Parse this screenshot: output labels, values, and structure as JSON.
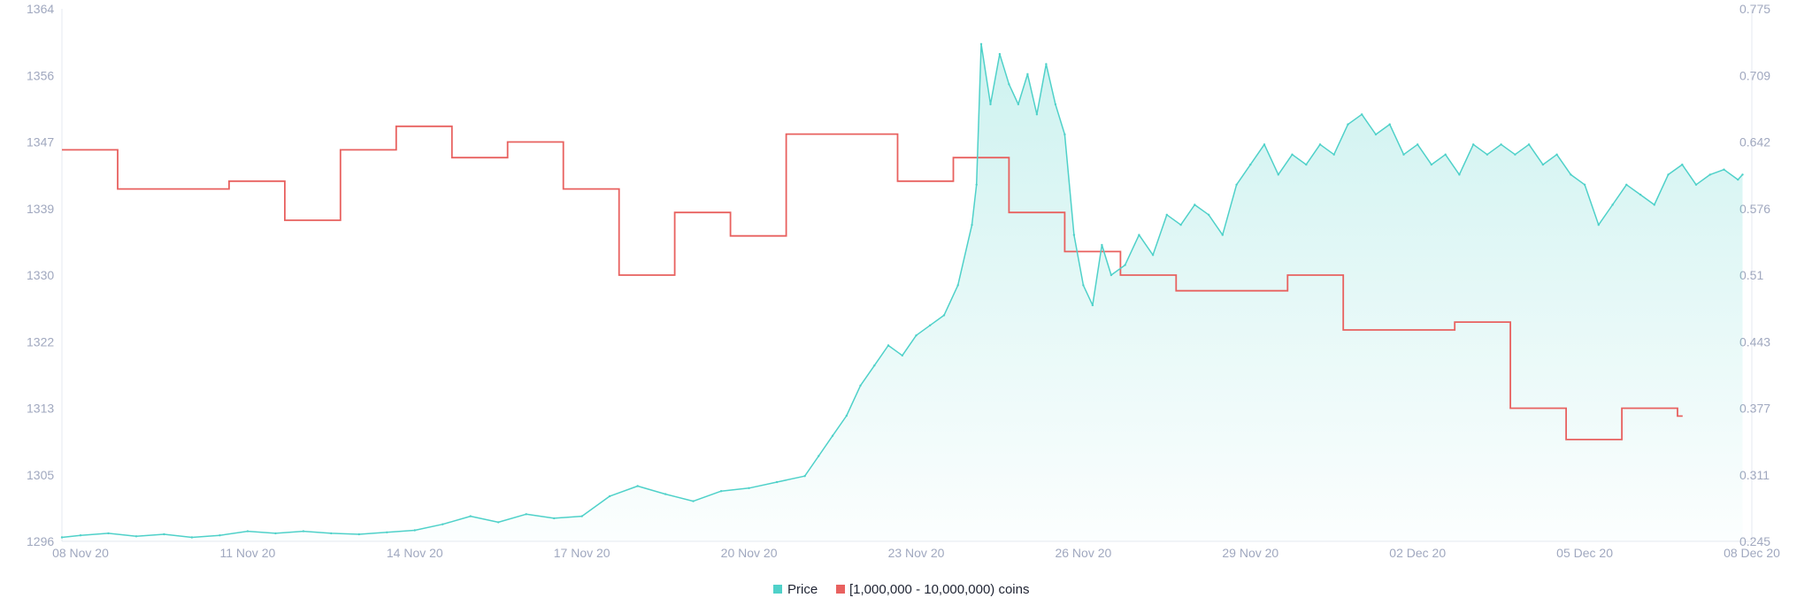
{
  "chart_data": {
    "type": "line",
    "x_range": [
      "2020-11-07T16:00",
      "2020-12-08T00:00"
    ],
    "x_ticks": [
      {
        "date": "2020-11-08",
        "label": "08 Nov 20"
      },
      {
        "date": "2020-11-11",
        "label": "11 Nov 20"
      },
      {
        "date": "2020-11-14",
        "label": "14 Nov 20"
      },
      {
        "date": "2020-11-17",
        "label": "17 Nov 20"
      },
      {
        "date": "2020-11-20",
        "label": "20 Nov 20"
      },
      {
        "date": "2020-11-23",
        "label": "23 Nov 20"
      },
      {
        "date": "2020-11-26",
        "label": "26 Nov 20"
      },
      {
        "date": "2020-11-29",
        "label": "29 Nov 20"
      },
      {
        "date": "2020-12-02",
        "label": "02 Dec 20"
      },
      {
        "date": "2020-12-05",
        "label": "05 Dec 20"
      },
      {
        "date": "2020-12-08",
        "label": "08 Dec 20"
      }
    ],
    "y_left": {
      "range": [
        1296,
        1364
      ],
      "ticks": [
        "1296",
        "1305",
        "1313",
        "1322",
        "1330",
        "1339",
        "1347",
        "1356",
        "1364"
      ]
    },
    "y_right": {
      "range": [
        0.245,
        0.775
      ],
      "ticks": [
        "0.245",
        "0.311",
        "0.377",
        "0.443",
        "0.51",
        "0.576",
        "0.642",
        "0.709",
        "0.775"
      ]
    },
    "grid": false,
    "legend_position": "bottom-center",
    "series": [
      {
        "name": "[1,000,000 - 10,000,000) coins",
        "axis": "left",
        "style": "step",
        "color": "#e8615f",
        "x": [
          "2020-11-07T16:00",
          "2020-11-08T16:00",
          "2020-11-10T16:00",
          "2020-11-11T16:00",
          "2020-11-12T16:00",
          "2020-11-13T16:00",
          "2020-11-14T16:00",
          "2020-11-15T16:00",
          "2020-11-16T16:00",
          "2020-11-17T16:00",
          "2020-11-18T16:00",
          "2020-11-19T16:00",
          "2020-11-20T16:00",
          "2020-11-22T16:00",
          "2020-11-23T16:00",
          "2020-11-24T16:00",
          "2020-11-25T16:00",
          "2020-11-26T16:00",
          "2020-11-27T16:00",
          "2020-11-29T16:00",
          "2020-11-30T16:00",
          "2020-12-02T16:00",
          "2020-12-03T16:00",
          "2020-12-04T16:00",
          "2020-12-05T16:00",
          "2020-12-06T16:00"
        ],
        "values": [
          1346,
          1341,
          1342,
          1337,
          1346,
          1349,
          1345,
          1347,
          1341,
          1330,
          1338,
          1335,
          1348,
          1342,
          1345,
          1338,
          1333,
          1330,
          1328,
          1330,
          1323,
          1324,
          1313,
          1309,
          1313,
          1312
        ]
      },
      {
        "name": "Price",
        "axis": "right",
        "style": "area",
        "color": "#4fd1c9",
        "x": [
          "2020-11-07T16:00",
          "2020-11-08T00:00",
          "2020-11-08T12:00",
          "2020-11-09T00:00",
          "2020-11-09T12:00",
          "2020-11-10T00:00",
          "2020-11-10T12:00",
          "2020-11-11T00:00",
          "2020-11-11T12:00",
          "2020-11-12T00:00",
          "2020-11-12T12:00",
          "2020-11-13T00:00",
          "2020-11-13T12:00",
          "2020-11-14T00:00",
          "2020-11-14T12:00",
          "2020-11-15T00:00",
          "2020-11-15T12:00",
          "2020-11-16T00:00",
          "2020-11-16T12:00",
          "2020-11-17T00:00",
          "2020-11-17T12:00",
          "2020-11-18T00:00",
          "2020-11-18T12:00",
          "2020-11-19T00:00",
          "2020-11-19T12:00",
          "2020-11-20T00:00",
          "2020-11-20T12:00",
          "2020-11-21T00:00",
          "2020-11-21T06:00",
          "2020-11-21T12:00",
          "2020-11-21T18:00",
          "2020-11-22T00:00",
          "2020-11-22T06:00",
          "2020-11-22T12:00",
          "2020-11-22T18:00",
          "2020-11-23T00:00",
          "2020-11-23T06:00",
          "2020-11-23T12:00",
          "2020-11-23T18:00",
          "2020-11-24T00:00",
          "2020-11-24T02:00",
          "2020-11-24T04:00",
          "2020-11-24T08:00",
          "2020-11-24T12:00",
          "2020-11-24T16:00",
          "2020-11-24T20:00",
          "2020-11-25T00:00",
          "2020-11-25T04:00",
          "2020-11-25T08:00",
          "2020-11-25T12:00",
          "2020-11-25T16:00",
          "2020-11-25T20:00",
          "2020-11-26T00:00",
          "2020-11-26T04:00",
          "2020-11-26T08:00",
          "2020-11-26T12:00",
          "2020-11-26T18:00",
          "2020-11-27T00:00",
          "2020-11-27T06:00",
          "2020-11-27T12:00",
          "2020-11-27T18:00",
          "2020-11-28T00:00",
          "2020-11-28T06:00",
          "2020-11-28T12:00",
          "2020-11-28T18:00",
          "2020-11-29T00:00",
          "2020-11-29T06:00",
          "2020-11-29T12:00",
          "2020-11-29T18:00",
          "2020-11-30T00:00",
          "2020-11-30T06:00",
          "2020-11-30T12:00",
          "2020-11-30T18:00",
          "2020-12-01T00:00",
          "2020-12-01T06:00",
          "2020-12-01T12:00",
          "2020-12-01T18:00",
          "2020-12-02T00:00",
          "2020-12-02T06:00",
          "2020-12-02T12:00",
          "2020-12-02T18:00",
          "2020-12-03T00:00",
          "2020-12-03T06:00",
          "2020-12-03T12:00",
          "2020-12-03T18:00",
          "2020-12-04T00:00",
          "2020-12-04T06:00",
          "2020-12-04T12:00",
          "2020-12-04T18:00",
          "2020-12-05T00:00",
          "2020-12-05T06:00",
          "2020-12-05T12:00",
          "2020-12-05T18:00",
          "2020-12-06T00:00",
          "2020-12-06T06:00",
          "2020-12-06T12:00",
          "2020-12-06T18:00",
          "2020-12-07T00:00",
          "2020-12-07T06:00",
          "2020-12-07T12:00",
          "2020-12-07T18:00",
          "2020-12-07T20:00"
        ],
        "values": [
          0.249,
          0.251,
          0.253,
          0.25,
          0.252,
          0.249,
          0.251,
          0.255,
          0.253,
          0.255,
          0.253,
          0.252,
          0.254,
          0.256,
          0.262,
          0.27,
          0.264,
          0.272,
          0.268,
          0.27,
          0.29,
          0.3,
          0.292,
          0.285,
          0.295,
          0.298,
          0.304,
          0.31,
          0.33,
          0.35,
          0.37,
          0.4,
          0.42,
          0.44,
          0.43,
          0.45,
          0.46,
          0.47,
          0.5,
          0.56,
          0.6,
          0.74,
          0.68,
          0.73,
          0.7,
          0.68,
          0.71,
          0.67,
          0.72,
          0.68,
          0.65,
          0.55,
          0.5,
          0.48,
          0.54,
          0.51,
          0.52,
          0.55,
          0.53,
          0.57,
          0.56,
          0.58,
          0.57,
          0.55,
          0.6,
          0.62,
          0.64,
          0.61,
          0.63,
          0.62,
          0.64,
          0.63,
          0.66,
          0.67,
          0.65,
          0.66,
          0.63,
          0.64,
          0.62,
          0.63,
          0.61,
          0.64,
          0.63,
          0.64,
          0.63,
          0.64,
          0.62,
          0.63,
          0.61,
          0.6,
          0.56,
          0.58,
          0.6,
          0.59,
          0.58,
          0.61,
          0.62,
          0.6,
          0.61,
          0.615,
          0.605,
          0.61
        ]
      }
    ]
  },
  "legend": [
    {
      "label": "Price",
      "color": "#4fd1c9"
    },
    {
      "label": "[1,000,000 - 10,000,000) coins",
      "color": "#e8615f"
    }
  ]
}
